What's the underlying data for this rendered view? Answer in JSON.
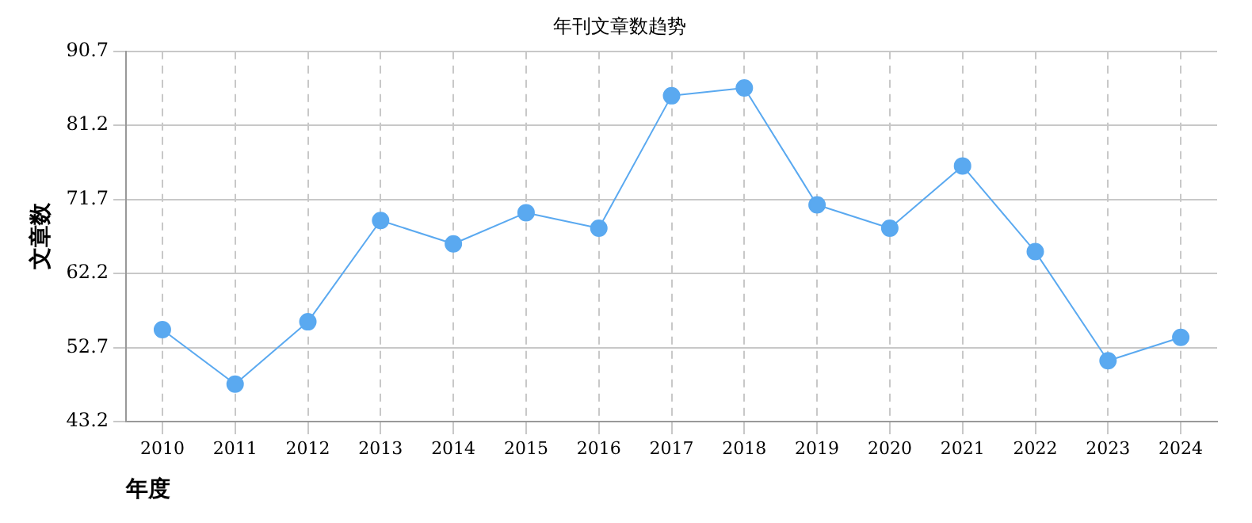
{
  "chart_data": {
    "type": "line",
    "title": "年刊文章数趋势",
    "xlabel": "年度",
    "ylabel": "文章数",
    "categories": [
      "2010",
      "2011",
      "2012",
      "2013",
      "2014",
      "2015",
      "2016",
      "2017",
      "2018",
      "2019",
      "2020",
      "2021",
      "2022",
      "2023",
      "2024"
    ],
    "series": [
      {
        "color": "#5aa9f0",
        "values": [
          55,
          48,
          56,
          69,
          66,
          70,
          68,
          85,
          86,
          71,
          68,
          76,
          65,
          51,
          54
        ]
      }
    ],
    "ylim": [
      43.2,
      90.7
    ],
    "yticks": [
      43.2,
      52.7,
      62.2,
      71.7,
      81.2,
      90.7
    ],
    "grid": true,
    "marker": "circle",
    "line_style": "solid"
  }
}
